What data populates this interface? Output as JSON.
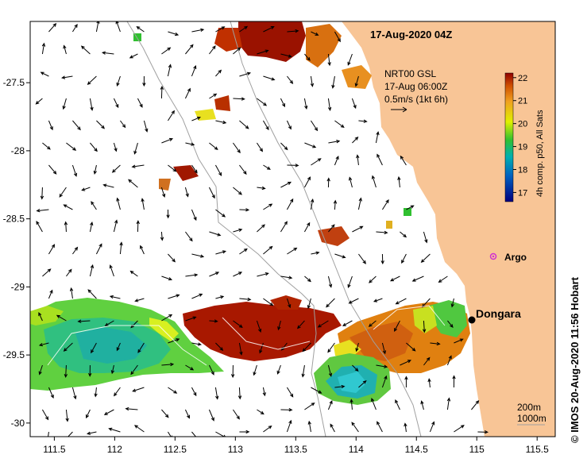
{
  "title": "17-Aug-2020 04Z",
  "legend": {
    "line1": "NRT00 GSL",
    "line2": "17-Aug 06:00Z",
    "line3": "0.5m/s (1kt 6h)"
  },
  "colorbar": {
    "label": "4h comp. p50, All Sats",
    "ticks": [
      "22",
      "21",
      "20",
      "19",
      "18",
      "17"
    ],
    "min": 16.6,
    "max": 22.2
  },
  "contours": {
    "label_a": "200m",
    "label_b": "1000m"
  },
  "places": {
    "argo": "Argo",
    "dongara": "Dongara"
  },
  "credit": "© IMOS 20-Aug-2020 11:56 Hobart",
  "axes": {
    "x_ticks": [
      "111.5",
      "112",
      "112.5",
      "113",
      "113.5",
      "114",
      "114.5",
      "115",
      "115.5"
    ],
    "y_ticks": [
      "-27.5",
      "-28",
      "-28.5",
      "-29",
      "-29.5",
      "-30"
    ],
    "x_range": [
      111.3,
      115.65
    ],
    "y_range": [
      -27.05,
      -30.1
    ]
  },
  "colors": {
    "land": "#f8c596",
    "contour": "#a0a0a0",
    "argo": "#d030d0"
  }
}
